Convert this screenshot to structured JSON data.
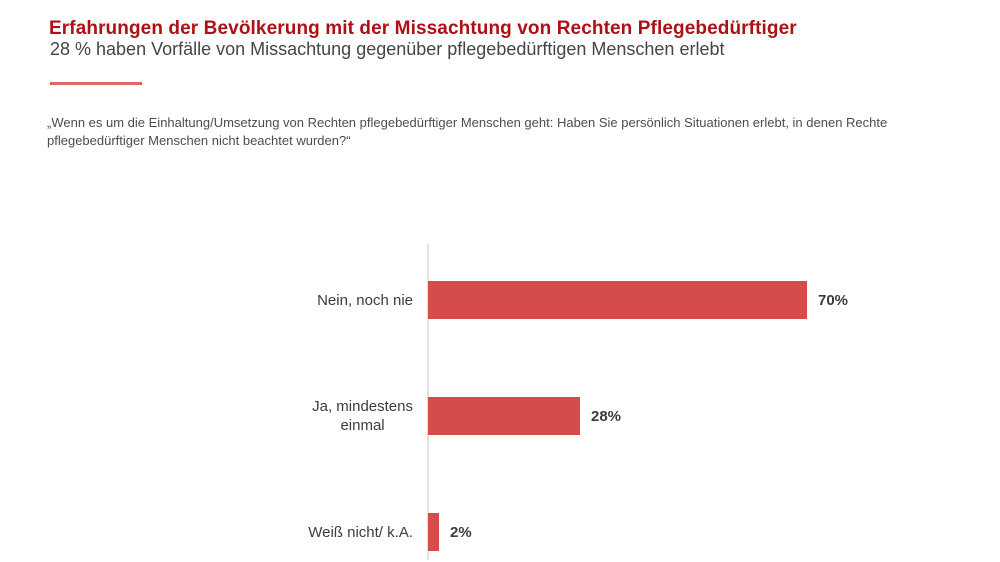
{
  "header": {
    "title": "Erfahrungen der Bevölkerung mit der Missachtung von Rechten Pflegebedürftiger",
    "subtitle": "28 % haben Vorfälle von Missachtung gegenüber pflegebedürftigen Menschen erlebt"
  },
  "question": "„Wenn es um die Einhaltung/Umsetzung von Rechten pflegebedürftiger Menschen geht: Haben Sie persönlich Situationen erlebt, in denen Rechte pflegebedürftiger Menschen nicht beachtet wurden?“",
  "colors": {
    "title_red": "#ad1016",
    "divider_red": "#dd6a66",
    "bar_red": "#d54c4b",
    "text_dark": "#3c3c3c",
    "axis_gray": "#e2e2e2"
  },
  "chart_data": {
    "type": "bar",
    "orientation": "horizontal",
    "title": "Erfahrungen der Bevölkerung mit der Missachtung von Rechten Pflegebedürftiger",
    "subtitle": "28 % haben Vorfälle von Missachtung gegenüber pflegebedürftigen Menschen erlebt",
    "categories": [
      "Nein, noch nie",
      "Ja, mindestens\neinmal",
      "Weiß nicht/ k.A."
    ],
    "values": [
      70,
      28,
      2
    ],
    "value_labels": [
      "70%",
      "28%",
      "2%"
    ],
    "unit": "%",
    "xlim": [
      0,
      100
    ],
    "grid": false,
    "legend": false,
    "bar_color": "#d54c4b",
    "axis_line": "left-vertical"
  }
}
